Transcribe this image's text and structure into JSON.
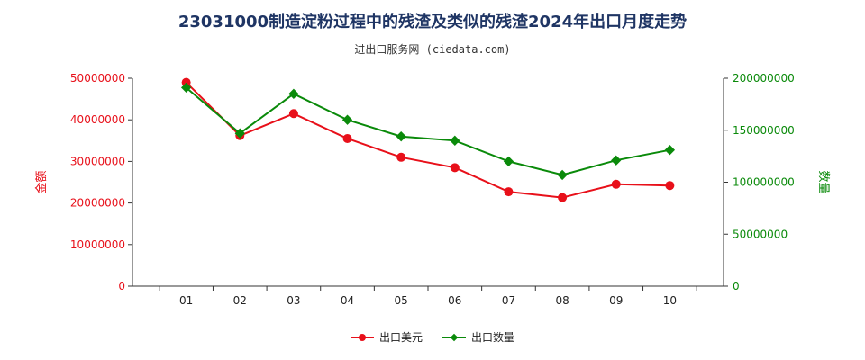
{
  "header": {
    "title": "23031000制造淀粉过程中的残渣及类似的残渣2024年出口月度走势",
    "subtitle": "进出口服务网 (ciedata.com)"
  },
  "colors": {
    "amount": "#e8101a",
    "quantity": "#0a8a0a",
    "axis": "#333333"
  },
  "chart_data": {
    "type": "line",
    "categories": [
      "01",
      "02",
      "03",
      "04",
      "05",
      "06",
      "07",
      "08",
      "09",
      "10"
    ],
    "y_left": {
      "label": "金额",
      "range": [
        0,
        50000000
      ],
      "ticks": [
        0,
        10000000,
        20000000,
        30000000,
        40000000,
        50000000
      ],
      "tick_labels": [
        "0",
        "10000000",
        "20000000",
        "30000000",
        "40000000",
        "50000000"
      ]
    },
    "y_right": {
      "label": "数量",
      "range": [
        0,
        200000000
      ],
      "ticks": [
        0,
        50000000,
        100000000,
        150000000,
        200000000
      ],
      "tick_labels": [
        "0",
        "50000000",
        "100000000",
        "150000000",
        "200000000"
      ]
    },
    "series": [
      {
        "name": "出口美元",
        "axis": "left",
        "values": [
          49000000,
          36200000,
          41500000,
          35500000,
          31000000,
          28500000,
          22700000,
          21300000,
          24500000,
          24200000
        ]
      },
      {
        "name": "出口数量",
        "axis": "right",
        "values": [
          191000000,
          147000000,
          185000000,
          160000000,
          144000000,
          140000000,
          120000000,
          107000000,
          121000000,
          131000000
        ]
      }
    ],
    "grid": false,
    "legend_position": "bottom-center"
  }
}
